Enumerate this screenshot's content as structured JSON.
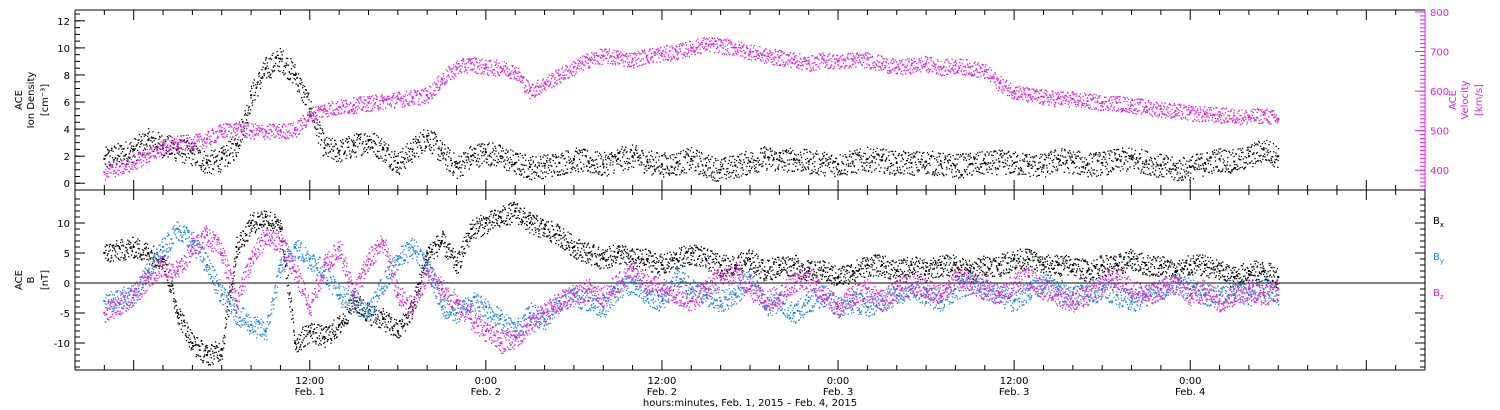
{
  "chart_data": [
    {
      "type": "scatter",
      "panel": "top",
      "ylabel_left": [
        "ACE",
        "Ion Density",
        "[cm⁻³]"
      ],
      "ylabel_right": [
        "ACE",
        "Velocity",
        "[km/s]"
      ],
      "ylim_left": [
        -0.5,
        12.8
      ],
      "ylim_right": [
        350,
        805
      ],
      "yticks_left": [
        "0",
        "2",
        "4",
        "6",
        "8",
        "10",
        "12"
      ],
      "yticks_left_values": [
        0,
        2,
        4,
        6,
        8,
        10,
        12
      ],
      "yticks_right": [
        "400",
        "500",
        "600",
        "700",
        "800"
      ],
      "yticks_right_values": [
        400,
        500,
        600,
        700,
        800
      ],
      "right_axis_color": "#e020e0",
      "series": [
        {
          "axis": "left",
          "color": "#000000",
          "x": [
            -2,
            0,
            1,
            2,
            3,
            4,
            5,
            6,
            7,
            8,
            9,
            10,
            11,
            12,
            13,
            14,
            15,
            16,
            17,
            18,
            19,
            20,
            21,
            22,
            23,
            24,
            25,
            26,
            27,
            28,
            29,
            30,
            31,
            32,
            33,
            34,
            35,
            36,
            37,
            38,
            39,
            40,
            41,
            42,
            43,
            44,
            45,
            46,
            47,
            48,
            49,
            50,
            51,
            52,
            53,
            54,
            55,
            56,
            57,
            58,
            59,
            60,
            61,
            62,
            63,
            64,
            65,
            66,
            67,
            68,
            69,
            70,
            71,
            72,
            73,
            74,
            75,
            76,
            77,
            78
          ],
          "y": [
            1.8,
            2.5,
            3.2,
            2.8,
            2.5,
            2.2,
            1.5,
            1.8,
            2.8,
            6.5,
            8.5,
            9.2,
            8.0,
            5.5,
            2.6,
            2.4,
            2.8,
            3.2,
            2.5,
            1.5,
            2.5,
            3.5,
            2.2,
            1.2,
            2.0,
            2.3,
            2.0,
            1.5,
            1.2,
            1.3,
            1.5,
            1.8,
            1.6,
            1.4,
            1.8,
            2.0,
            1.6,
            1.4,
            1.5,
            1.8,
            1.3,
            1.0,
            1.3,
            1.6,
            1.9,
            1.7,
            1.8,
            1.6,
            1.5,
            1.4,
            1.6,
            1.8,
            1.7,
            1.5,
            1.5,
            1.6,
            1.4,
            1.3,
            1.4,
            1.5,
            1.6,
            1.5,
            1.4,
            1.3,
            1.8,
            1.6,
            1.4,
            1.5,
            1.7,
            1.8,
            1.6,
            1.3,
            1.0,
            1.2,
            1.5,
            1.8,
            1.6,
            2.0,
            2.5,
            2.0
          ]
        },
        {
          "axis": "right",
          "color": "#e020e0",
          "x": [
            -2,
            0,
            1,
            2,
            3,
            4,
            5,
            6,
            7,
            8,
            9,
            10,
            11,
            12,
            13,
            14,
            15,
            16,
            17,
            18,
            19,
            20,
            21,
            22,
            23,
            24,
            25,
            26,
            27,
            28,
            29,
            30,
            31,
            32,
            33,
            34,
            35,
            36,
            37,
            38,
            39,
            40,
            41,
            42,
            43,
            44,
            45,
            46,
            47,
            48,
            49,
            50,
            51,
            52,
            53,
            54,
            55,
            56,
            57,
            58,
            59,
            60,
            61,
            62,
            63,
            64,
            65,
            66,
            67,
            68,
            69,
            70,
            71,
            72,
            73,
            74,
            75,
            76,
            77,
            78
          ],
          "y": [
            395,
            420,
            440,
            460,
            470,
            470,
            480,
            500,
            505,
            500,
            498,
            500,
            502,
            540,
            555,
            560,
            565,
            570,
            575,
            580,
            585,
            590,
            630,
            660,
            670,
            660,
            660,
            650,
            600,
            620,
            640,
            660,
            680,
            690,
            685,
            680,
            690,
            695,
            700,
            710,
            720,
            715,
            710,
            700,
            690,
            685,
            680,
            670,
            680,
            675,
            680,
            680,
            670,
            660,
            665,
            670,
            660,
            665,
            660,
            650,
            620,
            600,
            590,
            585,
            582,
            580,
            575,
            572,
            570,
            565,
            560,
            555,
            550,
            545,
            542,
            540,
            538,
            535,
            540,
            530
          ]
        }
      ]
    },
    {
      "type": "scatter",
      "panel": "bottom",
      "ylabel_left": [
        "ACE",
        "B",
        "[nT]"
      ],
      "ylim": [
        -14.5,
        15.5
      ],
      "yticks": [
        "-10",
        "-5",
        "0",
        "5",
        "10"
      ],
      "yticks_values": [
        -10,
        -5,
        0,
        5,
        10
      ],
      "zero_line": true,
      "legend": [
        {
          "name": "Bx",
          "main": "B",
          "sub": "x",
          "color": "#000000"
        },
        {
          "name": "By",
          "main": "B",
          "sub": "y",
          "color": "#1e88e0"
        },
        {
          "name": "Bz",
          "main": "B",
          "sub": "z",
          "color": "#e020e0"
        }
      ],
      "series": [
        {
          "name": "Bx",
          "color": "#000000",
          "x": [
            -2,
            0,
            1,
            2,
            3,
            4,
            5,
            6,
            7,
            8,
            9,
            10,
            11,
            12,
            13,
            14,
            15,
            16,
            17,
            18,
            19,
            20,
            21,
            22,
            23,
            24,
            25,
            26,
            27,
            28,
            29,
            30,
            31,
            32,
            33,
            34,
            35,
            36,
            37,
            38,
            39,
            40,
            41,
            42,
            43,
            44,
            45,
            46,
            47,
            48,
            49,
            50,
            51,
            52,
            53,
            54,
            55,
            56,
            57,
            58,
            59,
            60,
            61,
            62,
            63,
            64,
            65,
            66,
            67,
            68,
            69,
            70,
            71,
            72,
            73,
            74,
            75,
            76,
            77,
            78
          ],
          "y": [
            5,
            6,
            5,
            4,
            -5,
            -10,
            -12,
            -11,
            6,
            10,
            11,
            9,
            -10,
            -8,
            -9,
            -7,
            -3,
            -5,
            -6,
            -8,
            -4,
            5,
            7,
            3,
            9,
            10,
            11,
            12,
            10,
            9,
            8,
            6,
            5,
            4,
            5,
            4,
            4,
            3,
            4,
            5,
            4,
            3,
            3,
            4,
            2,
            3,
            3,
            2,
            2,
            1,
            2,
            3,
            3,
            2,
            3,
            2,
            3,
            3,
            2,
            3,
            3,
            4,
            4,
            3,
            3,
            3,
            2,
            3,
            3,
            4,
            3,
            3,
            2,
            3,
            3,
            2,
            1,
            2,
            2,
            1
          ]
        },
        {
          "name": "By",
          "color": "#1e88e0",
          "x": [
            -2,
            0,
            1,
            2,
            3,
            4,
            5,
            6,
            7,
            8,
            9,
            10,
            11,
            12,
            13,
            14,
            15,
            16,
            17,
            18,
            19,
            20,
            21,
            22,
            23,
            24,
            25,
            26,
            27,
            28,
            29,
            30,
            31,
            32,
            33,
            34,
            35,
            36,
            37,
            38,
            39,
            40,
            41,
            42,
            43,
            44,
            45,
            46,
            47,
            48,
            49,
            50,
            51,
            52,
            53,
            54,
            55,
            56,
            57,
            58,
            59,
            60,
            61,
            62,
            63,
            64,
            65,
            66,
            67,
            68,
            69,
            70,
            71,
            72,
            73,
            74,
            75,
            76,
            77,
            78
          ],
          "y": [
            -3,
            -2,
            2,
            6,
            9,
            7,
            3,
            -2,
            -5,
            -7,
            -8,
            3,
            6,
            4,
            2,
            -2,
            -3,
            -5,
            0,
            4,
            6,
            3,
            -4,
            -5,
            -3,
            -4,
            -6,
            -8,
            -5,
            -6,
            -3,
            -2,
            -3,
            -4,
            -1,
            0,
            -2,
            -3,
            1,
            -1,
            -2,
            -3,
            -2,
            1,
            -4,
            -3,
            -5,
            -3,
            -2,
            -4,
            -3,
            -4,
            -3,
            -2,
            -1,
            -2,
            -3,
            -1,
            0,
            -1,
            -2,
            -3,
            -1,
            0,
            -1,
            -2,
            -2,
            -1,
            -2,
            -3,
            -2,
            -1,
            0,
            -1,
            -2,
            -2,
            -1,
            -2,
            -1,
            -2
          ]
        },
        {
          "name": "Bz",
          "color": "#e020e0",
          "x": [
            -2,
            0,
            1,
            2,
            3,
            4,
            5,
            6,
            7,
            8,
            9,
            10,
            11,
            12,
            13,
            14,
            15,
            16,
            17,
            18,
            19,
            20,
            21,
            22,
            23,
            24,
            25,
            26,
            27,
            28,
            29,
            30,
            31,
            32,
            33,
            34,
            35,
            36,
            37,
            38,
            39,
            40,
            41,
            42,
            43,
            44,
            45,
            46,
            47,
            48,
            49,
            50,
            51,
            52,
            53,
            54,
            55,
            56,
            57,
            58,
            59,
            60,
            61,
            62,
            63,
            64,
            65,
            66,
            67,
            68,
            69,
            70,
            71,
            72,
            73,
            74,
            75,
            76,
            77,
            78
          ],
          "y": [
            -5,
            -2,
            1,
            3,
            2,
            6,
            8,
            5,
            -3,
            4,
            8,
            7,
            2,
            -4,
            3,
            6,
            -2,
            4,
            7,
            -2,
            -4,
            2,
            -1,
            -3,
            -6,
            -8,
            -10,
            -9,
            -7,
            -5,
            -3,
            -2,
            -1,
            -2,
            0,
            2,
            0,
            -1,
            -2,
            -3,
            -1,
            1,
            2,
            -1,
            -3,
            -2,
            0,
            1,
            -2,
            -4,
            -2,
            -1,
            -3,
            -1,
            0,
            -1,
            -2,
            1,
            0,
            -1,
            -2,
            0,
            1,
            -1,
            -2,
            -3,
            -2,
            0,
            1,
            -1,
            -2,
            -1,
            0,
            -2,
            -1,
            -3,
            -2,
            -1,
            -2,
            -1
          ]
        }
      ]
    }
  ],
  "x_axis": {
    "xlim": [
      -4,
      88
    ],
    "minor_tick_step_hours": 2,
    "major_tick_step_hours": 12,
    "tick_labels": [
      {
        "hours": 12,
        "time": "12:00",
        "date": "Feb. 1"
      },
      {
        "hours": 24,
        "time": "0:00",
        "date": "Feb. 2"
      },
      {
        "hours": 36,
        "time": "12:00",
        "date": "Feb. 2"
      },
      {
        "hours": 48,
        "time": "0:00",
        "date": "Feb. 3"
      },
      {
        "hours": 60,
        "time": "12:00",
        "date": "Feb. 3"
      },
      {
        "hours": 72,
        "time": "0:00",
        "date": "Feb. 4"
      }
    ],
    "title": "hours:minutes, Feb.  1, 2015 – Feb.  4, 2015"
  }
}
